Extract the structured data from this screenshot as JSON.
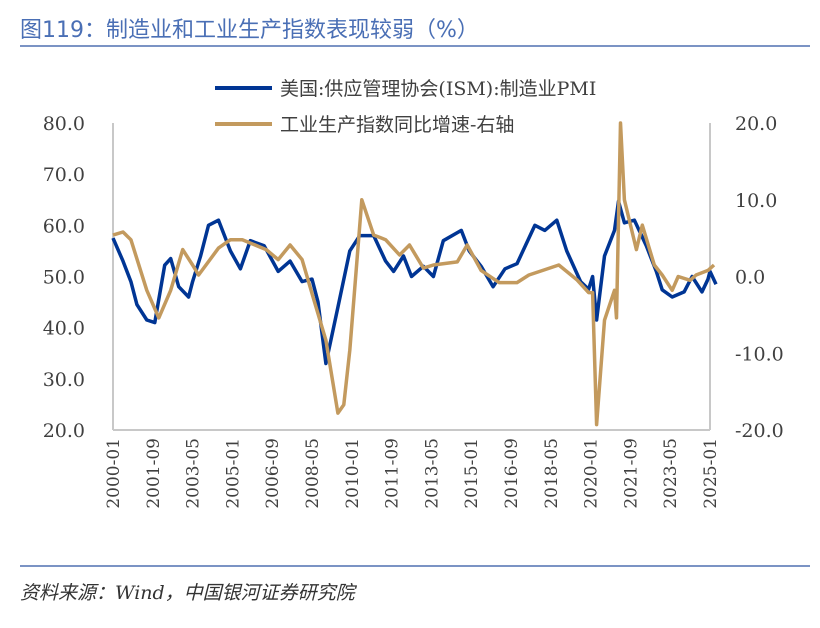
{
  "title": "图119：制造业和工业生产指数表现较弱（%）",
  "source": "资料来源：Wind，中国银河证券研究院",
  "chart_data": {
    "type": "line",
    "title": "",
    "grid": false,
    "legend_position": "top",
    "left_axis": {
      "ylim": [
        20,
        80
      ],
      "ticks": [
        "80.0",
        "70.0",
        "60.0",
        "50.0",
        "40.0",
        "30.0",
        "20.0"
      ]
    },
    "right_axis": {
      "ylim": [
        -20,
        20
      ],
      "ticks": [
        "20.0",
        "10.0",
        "0.0",
        "-10.0",
        "-20.0"
      ]
    },
    "x_ticks": [
      "2000-01",
      "2001-09",
      "2003-05",
      "2005-01",
      "2006-09",
      "2008-05",
      "2010-01",
      "2011-09",
      "2013-05",
      "2015-01",
      "2016-09",
      "2018-05",
      "2020-01",
      "2021-09",
      "2023-05",
      "2025-01"
    ],
    "series": [
      {
        "name": "美国:供应管理协会(ISM):制造业PMI",
        "axis": "left",
        "color": "#003594",
        "points": [
          [
            "2000-01",
            57.5
          ],
          [
            "2000-06",
            53
          ],
          [
            "2000-10",
            49
          ],
          [
            "2001-01",
            44.5
          ],
          [
            "2001-06",
            41.5
          ],
          [
            "2001-10",
            41
          ],
          [
            "2002-03",
            52.2
          ],
          [
            "2002-06",
            53.5
          ],
          [
            "2002-10",
            48
          ],
          [
            "2003-03",
            46
          ],
          [
            "2003-05",
            49
          ],
          [
            "2003-09",
            54
          ],
          [
            "2004-01",
            60
          ],
          [
            "2004-06",
            61
          ],
          [
            "2004-12",
            55
          ],
          [
            "2005-05",
            51.5
          ],
          [
            "2005-10",
            57
          ],
          [
            "2006-05",
            56
          ],
          [
            "2006-12",
            51
          ],
          [
            "2007-06",
            53
          ],
          [
            "2007-12",
            49
          ],
          [
            "2008-05",
            49.5
          ],
          [
            "2008-08",
            45
          ],
          [
            "2008-12",
            33
          ],
          [
            "2009-06",
            44
          ],
          [
            "2009-12",
            55
          ],
          [
            "2010-05",
            58
          ],
          [
            "2010-12",
            58
          ],
          [
            "2011-06",
            53
          ],
          [
            "2011-10",
            51
          ],
          [
            "2012-03",
            54
          ],
          [
            "2012-07",
            50
          ],
          [
            "2013-01",
            52
          ],
          [
            "2013-06",
            50
          ],
          [
            "2013-11",
            57
          ],
          [
            "2014-08",
            59
          ],
          [
            "2014-12",
            55
          ],
          [
            "2015-06",
            52
          ],
          [
            "2015-12",
            48
          ],
          [
            "2016-06",
            51.5
          ],
          [
            "2016-12",
            52.5
          ],
          [
            "2017-09",
            60
          ],
          [
            "2018-02",
            59
          ],
          [
            "2018-08",
            61
          ],
          [
            "2019-01",
            55
          ],
          [
            "2019-08",
            49
          ],
          [
            "2019-12",
            47.5
          ],
          [
            "2020-02",
            50
          ],
          [
            "2020-04",
            41.5
          ],
          [
            "2020-08",
            54
          ],
          [
            "2021-01",
            59
          ],
          [
            "2021-03",
            64.7
          ],
          [
            "2021-06",
            60.5
          ],
          [
            "2021-11",
            61
          ],
          [
            "2022-05",
            56
          ],
          [
            "2022-10",
            51
          ],
          [
            "2023-01",
            47.4
          ],
          [
            "2023-06",
            46
          ],
          [
            "2023-12",
            47
          ],
          [
            "2024-04",
            50
          ],
          [
            "2024-09",
            47
          ],
          [
            "2024-12",
            49.5
          ],
          [
            "2025-01",
            51
          ],
          [
            "2025-04",
            48.5
          ]
        ]
      },
      {
        "name": "工业生产指数同比增速-右轴",
        "axis": "right",
        "color": "#c39a5e",
        "points": [
          [
            "2000-01",
            5.4
          ],
          [
            "2000-06",
            5.8
          ],
          [
            "2000-10",
            4.8
          ],
          [
            "2001-06",
            -1.8
          ],
          [
            "2001-12",
            -5.4
          ],
          [
            "2002-06",
            -1.8
          ],
          [
            "2002-12",
            3.5
          ],
          [
            "2003-05",
            1.5
          ],
          [
            "2003-08",
            0.2
          ],
          [
            "2004-06",
            3.7
          ],
          [
            "2004-12",
            4.8
          ],
          [
            "2005-06",
            4.8
          ],
          [
            "2006-06",
            3.5
          ],
          [
            "2006-12",
            2.2
          ],
          [
            "2007-06",
            4.1
          ],
          [
            "2007-12",
            2.2
          ],
          [
            "2008-06",
            -3.1
          ],
          [
            "2008-12",
            -8.3
          ],
          [
            "2009-06",
            -17.8
          ],
          [
            "2009-09",
            -16.7
          ],
          [
            "2009-12",
            -9.6
          ],
          [
            "2010-06",
            10
          ],
          [
            "2010-12",
            5.4
          ],
          [
            "2011-06",
            4.8
          ],
          [
            "2012-01",
            2.8
          ],
          [
            "2012-06",
            4.1
          ],
          [
            "2013-01",
            1.1
          ],
          [
            "2013-06",
            1.5
          ],
          [
            "2014-06",
            1.9
          ],
          [
            "2014-11",
            4.1
          ],
          [
            "2015-06",
            0.8
          ],
          [
            "2016-03",
            -0.8
          ],
          [
            "2016-12",
            -0.8
          ],
          [
            "2017-06",
            0.2
          ],
          [
            "2018-01",
            0.8
          ],
          [
            "2018-09",
            1.5
          ],
          [
            "2019-06",
            -0.4
          ],
          [
            "2019-12",
            -2.1
          ],
          [
            "2020-02",
            -2.1
          ],
          [
            "2020-04",
            -19.3
          ],
          [
            "2020-08",
            -5.7
          ],
          [
            "2021-01",
            -1.8
          ],
          [
            "2021-02",
            -5.4
          ],
          [
            "2021-04",
            20
          ],
          [
            "2021-06",
            10
          ],
          [
            "2021-12",
            3.5
          ],
          [
            "2022-03",
            6.7
          ],
          [
            "2022-09",
            1.5
          ],
          [
            "2023-01",
            0.2
          ],
          [
            "2023-06",
            -1.8
          ],
          [
            "2023-09",
            0
          ],
          [
            "2024-03",
            -0.5
          ],
          [
            "2024-06",
            0.2
          ],
          [
            "2024-12",
            0.8
          ],
          [
            "2025-03",
            1.5
          ]
        ]
      }
    ]
  }
}
